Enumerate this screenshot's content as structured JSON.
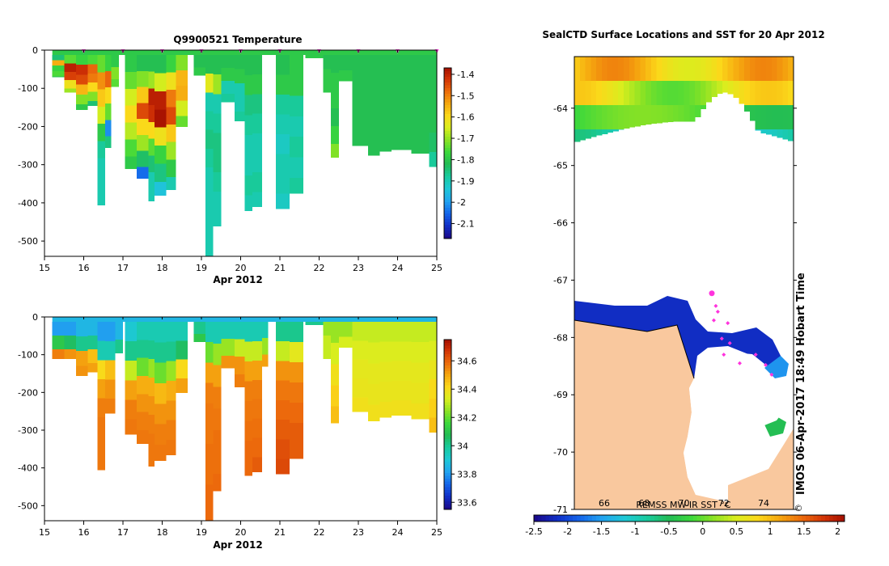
{
  "colors": {
    "land": "#f9c89e",
    "ice": "#ffffff",
    "track": "#ff33dd",
    "frame": "#000000"
  },
  "colormap": [
    "#1a0a8c",
    "#1030c8",
    "#1466ea",
    "#22a4f0",
    "#1ec8d6",
    "#18cba0",
    "#22bb55",
    "#3cd83c",
    "#8be224",
    "#d9ee1e",
    "#fbd81a",
    "#f5a60f",
    "#ec6a0c",
    "#d23306",
    "#a00c00"
  ],
  "chart_data": [
    {
      "type": "heatmap",
      "title": "Q9900521  Temperature",
      "xlabel": "Apr 2012",
      "x_ticks": [
        "15",
        "16",
        "17",
        "18",
        "19",
        "20",
        "21",
        "22",
        "23",
        "24",
        "25"
      ],
      "x_range": [
        15,
        25
      ],
      "y_ticks": [
        "0",
        "-100",
        "-200",
        "-300",
        "-400",
        "-500"
      ],
      "y_range": [
        -540,
        0
      ],
      "colorbar": {
        "min": -2.17,
        "max": -1.37,
        "ticks": [
          "-1.4",
          "-1.5",
          "-1.6",
          "-1.7",
          "-1.8",
          "-1.9",
          "-2",
          "-2.1"
        ]
      },
      "profile_marker_days": [
        16,
        17,
        18,
        19,
        20,
        21,
        22,
        23,
        24,
        25
      ],
      "profiles": [
        {
          "d0": 15.2,
          "d1": 15.5,
          "depth": 70,
          "values": [
            -1.85,
            -1.55,
            -1.78,
            -1.76,
            -1.82
          ]
        },
        {
          "d0": 15.5,
          "d1": 15.8,
          "depth": 110,
          "values": [
            -1.75,
            -1.4,
            -1.44,
            -1.62,
            -1.7
          ]
        },
        {
          "d0": 15.8,
          "d1": 16.1,
          "depth": 155,
          "values": [
            -1.78,
            -1.42,
            -1.45,
            -1.56,
            -1.72,
            -1.8
          ]
        },
        {
          "d0": 16.1,
          "d1": 16.35,
          "depth": 145,
          "values": [
            -1.76,
            -1.48,
            -1.5,
            -1.6,
            -1.72,
            -1.85
          ]
        },
        {
          "d0": 16.35,
          "d1": 16.55,
          "depth": 405,
          "values": [
            -1.74,
            -1.52,
            -1.58,
            -1.66,
            -1.8,
            -1.88,
            -1.9,
            -1.9,
            -1.9
          ]
        },
        {
          "d0": 16.55,
          "d1": 16.7,
          "depth": 255,
          "values": [
            -1.78,
            -1.48,
            -1.6,
            -1.74,
            -2.02,
            -1.86
          ]
        },
        {
          "d0": 16.7,
          "d1": 16.9,
          "depth": 95,
          "values": [
            -1.8,
            -1.72,
            -1.75
          ]
        },
        {
          "d0": 17.05,
          "d1": 17.35,
          "depth": 310,
          "values": [
            -1.8,
            -1.74,
            -1.66,
            -1.6,
            -1.68,
            -1.76,
            -1.8
          ]
        },
        {
          "d0": 17.35,
          "d1": 17.65,
          "depth": 335,
          "values": [
            -1.82,
            -1.72,
            -1.58,
            -1.45,
            -1.6,
            -1.7,
            -1.84,
            -2.05
          ]
        },
        {
          "d0": 17.65,
          "d1": 17.8,
          "depth": 395,
          "values": [
            -1.82,
            -1.7,
            -1.4,
            -1.42,
            -1.6,
            -1.75,
            -1.85,
            -1.9,
            -1.9
          ]
        },
        {
          "d0": 17.8,
          "d1": 18.1,
          "depth": 380,
          "values": [
            -1.82,
            -1.66,
            -1.4,
            -1.38,
            -1.62,
            -1.78,
            -1.86,
            -1.95
          ]
        },
        {
          "d0": 18.1,
          "d1": 18.35,
          "depth": 365,
          "values": [
            -1.78,
            -1.62,
            -1.5,
            -1.45,
            -1.58,
            -1.7,
            -1.8,
            -1.9
          ]
        },
        {
          "d0": 18.35,
          "d1": 18.65,
          "depth": 200,
          "values": [
            -1.72,
            -1.56,
            -1.55,
            -1.66,
            -1.74
          ]
        },
        {
          "d0": 18.8,
          "d1": 19.1,
          "depth": 65,
          "values": [
            -1.82,
            -1.8
          ]
        },
        {
          "d0": 19.1,
          "d1": 19.3,
          "depth": 540,
          "values": [
            -1.82,
            -1.64,
            -1.9,
            -1.88,
            -1.86,
            -1.88,
            -1.9,
            -1.9,
            -1.9,
            -1.9,
            -1.9
          ]
        },
        {
          "d0": 19.3,
          "d1": 19.5,
          "depth": 460,
          "values": [
            -1.82,
            -1.7,
            -1.9,
            -1.88,
            -1.86,
            -1.86,
            -1.88,
            -1.9,
            -1.9
          ]
        },
        {
          "d0": 19.5,
          "d1": 19.85,
          "depth": 135,
          "values": [
            -1.82,
            -1.8,
            -1.9,
            -1.88
          ]
        },
        {
          "d0": 19.85,
          "d1": 20.1,
          "depth": 185,
          "values": [
            -1.82,
            -1.8,
            -1.9,
            -1.9,
            -1.88
          ]
        },
        {
          "d0": 20.1,
          "d1": 20.3,
          "depth": 420,
          "values": [
            -1.82,
            -1.8,
            -1.86,
            -1.88,
            -1.9,
            -1.9,
            -1.88,
            -1.9
          ]
        },
        {
          "d0": 20.3,
          "d1": 20.55,
          "depth": 410,
          "values": [
            -1.82,
            -1.8,
            -1.86,
            -1.88,
            -1.9,
            -1.9,
            -1.88,
            -1.9
          ]
        },
        {
          "d0": 20.9,
          "d1": 21.25,
          "depth": 415,
          "values": [
            -1.82,
            -1.8,
            -1.88,
            -1.9,
            -1.92,
            -1.9,
            -1.9,
            -1.92
          ]
        },
        {
          "d0": 21.25,
          "d1": 21.6,
          "depth": 375,
          "values": [
            -1.8,
            -1.8,
            -1.88,
            -1.9,
            -1.88,
            -1.9,
            -1.88
          ]
        },
        {
          "d0": 21.65,
          "d1": 22.1,
          "depth": 20,
          "values": [
            -1.8
          ]
        },
        {
          "d0": 22.1,
          "d1": 22.3,
          "depth": 110,
          "values": [
            -1.82,
            -1.8,
            -1.8
          ]
        },
        {
          "d0": 22.3,
          "d1": 22.5,
          "depth": 280,
          "values": [
            -1.82,
            -1.8,
            -1.8,
            -1.82,
            -1.78,
            -1.72
          ]
        },
        {
          "d0": 22.5,
          "d1": 22.85,
          "depth": 80,
          "values": [
            -1.82,
            -1.8
          ]
        },
        {
          "d0": 22.85,
          "d1": 23.25,
          "depth": 250,
          "values": [
            -1.82,
            -1.82,
            -1.82,
            -1.82,
            -1.82
          ]
        },
        {
          "d0": 23.25,
          "d1": 23.55,
          "depth": 275,
          "values": [
            -1.82,
            -1.82,
            -1.82,
            -1.82,
            -1.82
          ]
        },
        {
          "d0": 23.55,
          "d1": 23.85,
          "depth": 265,
          "values": [
            -1.82,
            -1.82,
            -1.82,
            -1.82,
            -1.82
          ]
        },
        {
          "d0": 23.85,
          "d1": 24.35,
          "depth": 260,
          "values": [
            -1.82,
            -1.82,
            -1.82,
            -1.82,
            -1.82
          ]
        },
        {
          "d0": 24.35,
          "d1": 24.8,
          "depth": 270,
          "values": [
            -1.82,
            -1.82,
            -1.82,
            -1.82,
            -1.82
          ]
        },
        {
          "d0": 24.8,
          "d1": 25.0,
          "depth": 305,
          "values": [
            -1.82,
            -1.82,
            -1.82,
            -1.82,
            -1.84,
            -1.88
          ]
        }
      ]
    },
    {
      "type": "heatmap",
      "title": "",
      "xlabel": "Apr 2012",
      "x_ticks": [
        "15",
        "16",
        "17",
        "18",
        "19",
        "20",
        "21",
        "22",
        "23",
        "24",
        "25"
      ],
      "x_range": [
        15,
        25
      ],
      "y_ticks": [
        "0",
        "-100",
        "-200",
        "-300",
        "-400",
        "-500"
      ],
      "y_range": [
        -540,
        0
      ],
      "colorbar": {
        "min": 33.55,
        "max": 34.75,
        "ticks": [
          "34.6",
          "34.4",
          "34.2",
          "34",
          "33.8",
          "33.6"
        ]
      },
      "profiles": [
        {
          "d0": 15.2,
          "d1": 15.5,
          "depth": 110,
          "values": [
            33.8,
            34.1,
            34.55
          ]
        },
        {
          "d0": 15.5,
          "d1": 15.8,
          "depth": 110,
          "values": [
            33.8,
            34.05,
            34.52
          ]
        },
        {
          "d0": 15.8,
          "d1": 16.1,
          "depth": 155,
          "values": [
            33.85,
            34.0,
            34.5,
            34.52
          ]
        },
        {
          "d0": 16.1,
          "d1": 16.35,
          "depth": 145,
          "values": [
            33.85,
            34.0,
            34.45,
            34.5
          ]
        },
        {
          "d0": 16.35,
          "d1": 16.55,
          "depth": 405,
          "values": [
            33.8,
            33.95,
            34.4,
            34.5,
            34.55,
            34.56,
            34.56,
            34.56
          ]
        },
        {
          "d0": 16.55,
          "d1": 16.8,
          "depth": 255,
          "values": [
            33.8,
            33.95,
            34.45,
            34.52,
            34.55
          ]
        },
        {
          "d0": 16.8,
          "d1": 17.0,
          "depth": 95,
          "values": [
            33.85,
            34.0
          ]
        },
        {
          "d0": 17.05,
          "d1": 17.35,
          "depth": 310,
          "values": [
            33.9,
            34.0,
            34.3,
            34.5,
            34.55,
            34.56
          ]
        },
        {
          "d0": 17.35,
          "d1": 17.65,
          "depth": 335,
          "values": [
            33.95,
            34.0,
            34.2,
            34.48,
            34.52,
            34.55,
            34.56
          ]
        },
        {
          "d0": 17.65,
          "d1": 17.8,
          "depth": 395,
          "values": [
            33.95,
            34.0,
            34.25,
            34.48,
            34.52,
            34.55,
            34.56,
            34.56
          ]
        },
        {
          "d0": 17.8,
          "d1": 18.1,
          "depth": 380,
          "values": [
            33.95,
            34.0,
            34.2,
            34.46,
            34.52,
            34.55,
            34.56
          ]
        },
        {
          "d0": 18.1,
          "d1": 18.35,
          "depth": 365,
          "values": [
            33.95,
            34.0,
            34.25,
            34.48,
            34.52,
            34.55,
            34.56
          ]
        },
        {
          "d0": 18.35,
          "d1": 18.65,
          "depth": 200,
          "values": [
            33.95,
            34.05,
            34.4,
            34.5
          ]
        },
        {
          "d0": 18.8,
          "d1": 19.1,
          "depth": 65,
          "values": [
            34.0,
            34.1
          ]
        },
        {
          "d0": 19.1,
          "d1": 19.3,
          "depth": 540,
          "values": [
            33.95,
            34.2,
            34.5,
            34.55,
            34.56,
            34.56,
            34.57,
            34.57,
            34.58,
            34.58
          ]
        },
        {
          "d0": 19.3,
          "d1": 19.5,
          "depth": 460,
          "values": [
            33.95,
            34.25,
            34.5,
            34.55,
            34.56,
            34.57,
            34.57,
            34.58
          ]
        },
        {
          "d0": 19.5,
          "d1": 19.85,
          "depth": 135,
          "values": [
            33.95,
            34.25,
            34.52
          ]
        },
        {
          "d0": 19.85,
          "d1": 20.1,
          "depth": 185,
          "values": [
            33.95,
            34.3,
            34.52,
            34.55
          ]
        },
        {
          "d0": 20.1,
          "d1": 20.3,
          "depth": 420,
          "values": [
            33.95,
            34.3,
            34.5,
            34.55,
            34.56,
            34.57,
            34.58,
            34.58
          ]
        },
        {
          "d0": 20.3,
          "d1": 20.55,
          "depth": 410,
          "values": [
            33.95,
            34.3,
            34.5,
            34.55,
            34.56,
            34.57,
            34.58,
            34.6
          ]
        },
        {
          "d0": 20.55,
          "d1": 20.7,
          "depth": 130,
          "values": [
            33.95,
            34.25,
            34.5
          ]
        },
        {
          "d0": 20.9,
          "d1": 21.25,
          "depth": 415,
          "values": [
            34.0,
            34.3,
            34.52,
            34.56,
            34.58,
            34.6,
            34.62,
            34.63
          ]
        },
        {
          "d0": 21.25,
          "d1": 21.6,
          "depth": 375,
          "values": [
            34.0,
            34.35,
            34.52,
            34.56,
            34.58,
            34.6,
            34.6
          ]
        },
        {
          "d0": 21.65,
          "d1": 22.1,
          "depth": 20,
          "values": [
            34.0
          ]
        },
        {
          "d0": 22.1,
          "d1": 22.3,
          "depth": 110,
          "values": [
            34.25,
            34.3,
            34.3
          ]
        },
        {
          "d0": 22.3,
          "d1": 22.5,
          "depth": 280,
          "values": [
            34.25,
            34.32,
            34.38,
            34.42,
            34.45
          ]
        },
        {
          "d0": 22.5,
          "d1": 22.85,
          "depth": 80,
          "values": [
            34.25,
            34.32
          ]
        },
        {
          "d0": 22.85,
          "d1": 23.25,
          "depth": 250,
          "values": [
            34.3,
            34.33,
            34.35,
            34.36,
            34.38
          ]
        },
        {
          "d0": 23.25,
          "d1": 23.55,
          "depth": 275,
          "values": [
            34.3,
            34.33,
            34.35,
            34.36,
            34.38
          ]
        },
        {
          "d0": 23.55,
          "d1": 23.85,
          "depth": 265,
          "values": [
            34.3,
            34.33,
            34.35,
            34.36,
            34.38
          ]
        },
        {
          "d0": 23.85,
          "d1": 24.35,
          "depth": 260,
          "values": [
            34.3,
            34.33,
            34.35,
            34.36,
            34.38
          ]
        },
        {
          "d0": 24.35,
          "d1": 24.8,
          "depth": 270,
          "values": [
            34.3,
            34.33,
            34.35,
            34.36,
            34.38
          ]
        },
        {
          "d0": 24.8,
          "d1": 25.0,
          "depth": 305,
          "values": [
            34.3,
            34.33,
            34.36,
            34.4,
            34.42,
            34.45
          ]
        }
      ]
    },
    {
      "type": "heatmap",
      "title": "SealCTD Surface Locations and SST for 20 Apr 2012",
      "y_ticks": [
        "-64",
        "-65",
        "-66",
        "-67",
        "-68",
        "-69",
        "-70",
        "-71"
      ],
      "y_range": [
        -71,
        -63.1
      ],
      "x_ticks": [
        "66",
        "68",
        "70",
        "72",
        "74"
      ],
      "x_range": [
        64.5,
        75.5
      ],
      "colorbar": {
        "label": "REMSS MW-IR SST °C",
        "min": -2.5,
        "max": 2.1,
        "ticks": [
          "-2.5",
          "-2",
          "-1.5",
          "-1",
          "-0.5",
          "0",
          "0.5",
          "1",
          "1.5",
          "2"
        ]
      },
      "timestamp": "IMOS 06-Apr-2017 18:49 Hobart Time",
      "credit_symbol": "©",
      "seal_surface_locations": [
        {
          "lon": 71.4,
          "lat": -67.23
        },
        {
          "lon": 71.6,
          "lat": -67.45
        },
        {
          "lon": 71.7,
          "lat": -67.55
        },
        {
          "lon": 71.5,
          "lat": -67.7
        },
        {
          "lon": 72.2,
          "lat": -67.75
        },
        {
          "lon": 71.9,
          "lat": -68.02
        },
        {
          "lon": 72.3,
          "lat": -68.1
        },
        {
          "lon": 72.0,
          "lat": -68.3
        },
        {
          "lon": 72.8,
          "lat": -68.45
        },
        {
          "lon": 73.6,
          "lat": -68.3
        },
        {
          "lon": 74.1,
          "lat": -68.48
        },
        {
          "lon": 74.4,
          "lat": -68.65
        }
      ]
    }
  ]
}
